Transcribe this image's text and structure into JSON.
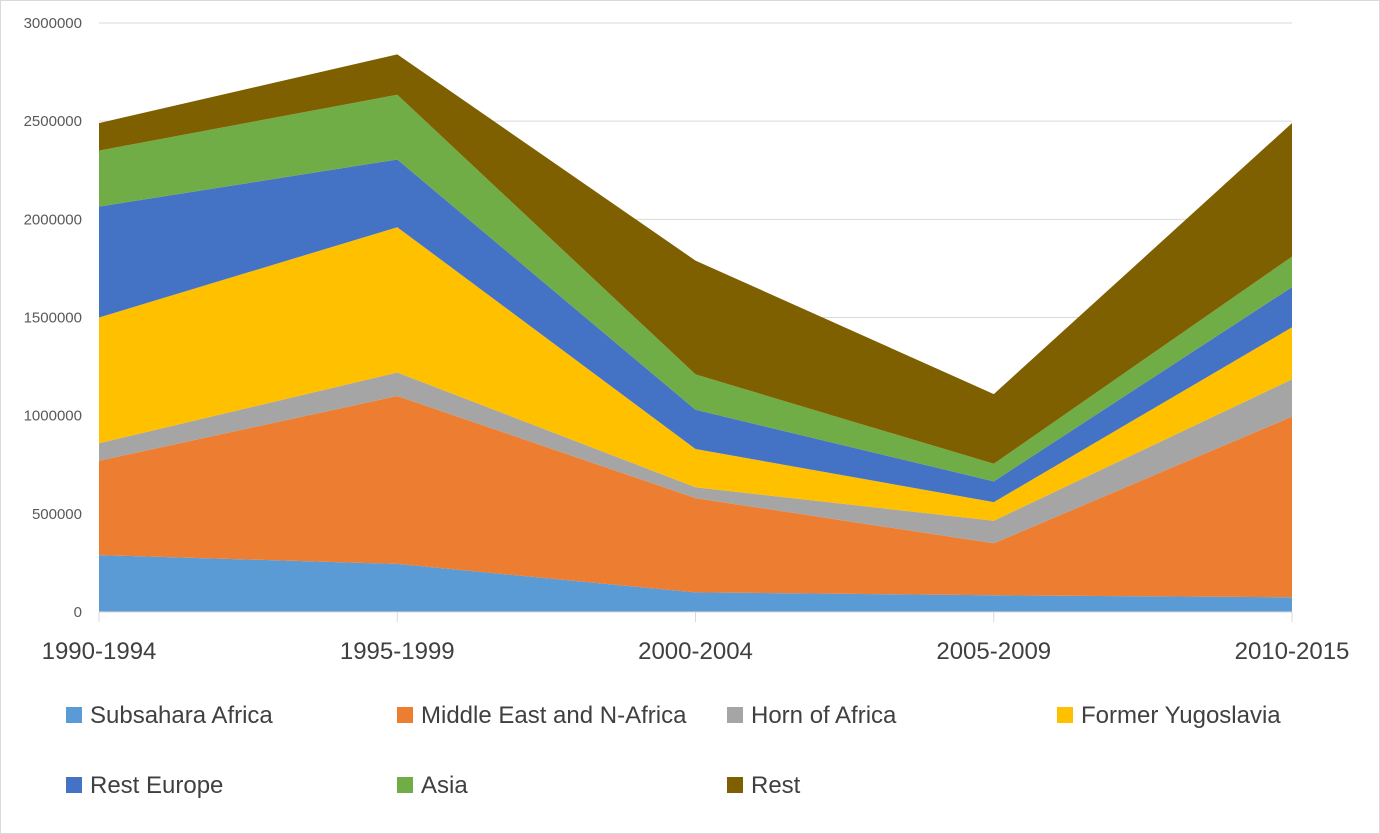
{
  "chart_data": {
    "type": "area",
    "stacked": true,
    "categories": [
      "1990-1994",
      "1995-1999",
      "2000-2004",
      "2005-2009",
      "2010-2015"
    ],
    "ylim": [
      0,
      3000000
    ],
    "yticks": [
      "0",
      "500000",
      "1000000",
      "1500000",
      "2000000",
      "2500000",
      "3000000"
    ],
    "grid": true,
    "legend_position": "bottom",
    "series": [
      {
        "name": "Subsahara Africa",
        "color": "#5B9BD5",
        "values": [
          290000,
          245000,
          100000,
          85000,
          75000
        ]
      },
      {
        "name": "Middle East and N-Africa",
        "color": "#ED7D31",
        "values": [
          480000,
          855000,
          480000,
          265000,
          920000
        ]
      },
      {
        "name": "Horn of Africa",
        "color": "#A5A5A5",
        "values": [
          90000,
          120000,
          55000,
          115000,
          190000
        ]
      },
      {
        "name": "Former Yugoslavia",
        "color": "#FFC000",
        "values": [
          640000,
          740000,
          195000,
          95000,
          265000
        ]
      },
      {
        "name": "Rest Europe",
        "color": "#4472C4",
        "values": [
          565000,
          345000,
          200000,
          105000,
          205000
        ]
      },
      {
        "name": "Asia",
        "color": "#70AD47",
        "values": [
          285000,
          330000,
          180000,
          90000,
          155000
        ]
      },
      {
        "name": "Rest",
        "color": "#7F6000",
        "values": [
          140000,
          205000,
          580000,
          355000,
          680000
        ]
      }
    ]
  }
}
